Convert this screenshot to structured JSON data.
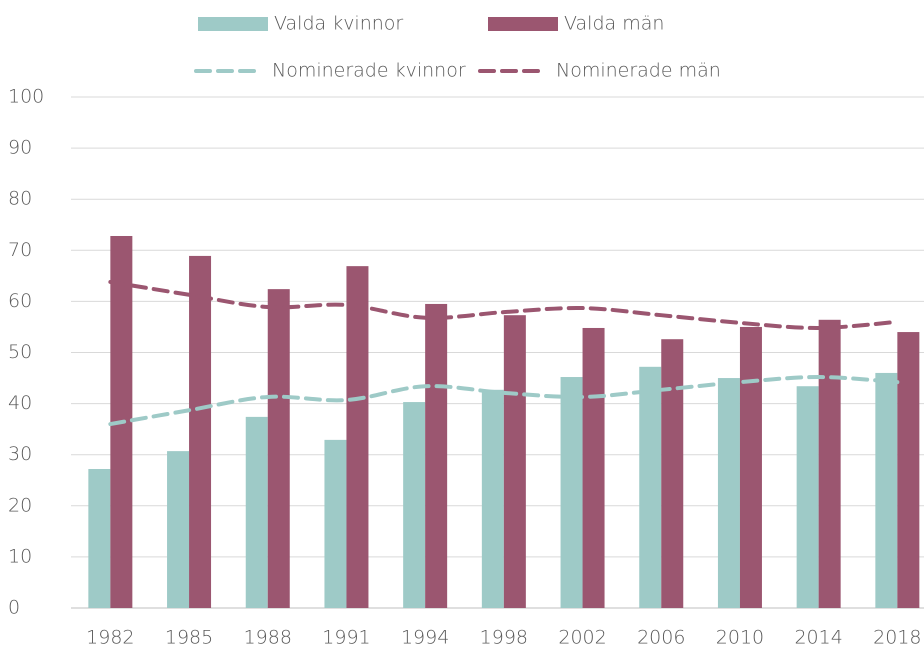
{
  "chart_data": {
    "type": "bar",
    "categories": [
      "1982",
      "1985",
      "1988",
      "1991",
      "1994",
      "1998",
      "2002",
      "2006",
      "2010",
      "2014",
      "2018"
    ],
    "series": [
      {
        "name": "Valda kvinnor",
        "type": "bar",
        "color": "#9ecac7",
        "values": [
          27.2,
          30.7,
          37.4,
          32.9,
          40.3,
          42.7,
          45.2,
          47.2,
          45.0,
          43.4,
          46.0
        ]
      },
      {
        "name": "Valda män",
        "type": "bar",
        "color": "#9b5670",
        "values": [
          72.8,
          68.9,
          62.4,
          66.9,
          59.5,
          57.3,
          54.8,
          52.6,
          55.0,
          56.4,
          54.0
        ]
      },
      {
        "name": "Nominerade kvinnor",
        "type": "line",
        "dashed": true,
        "color": "#9ecac7",
        "values": [
          36.0,
          38.7,
          41.3,
          40.7,
          43.4,
          42.1,
          41.3,
          42.7,
          44.2,
          45.2,
          44.2
        ]
      },
      {
        "name": "Nominerade män",
        "type": "line",
        "dashed": true,
        "color": "#9b5670",
        "values": [
          63.8,
          61.3,
          58.9,
          59.3,
          56.8,
          57.9,
          58.7,
          57.3,
          55.8,
          54.8,
          56.0
        ]
      }
    ],
    "ylim": [
      0,
      100
    ],
    "yticks": [
      0,
      10,
      20,
      30,
      40,
      50,
      60,
      70,
      80,
      90,
      100
    ],
    "grid": true,
    "legend": "top"
  }
}
